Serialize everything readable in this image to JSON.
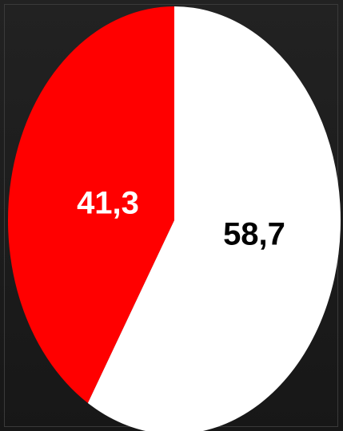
{
  "chart_data": {
    "type": "pie",
    "categories": [
      "",
      ""
    ],
    "values": [
      41.3,
      58.7
    ],
    "value_labels": [
      "41,3",
      "58,7"
    ],
    "colors": [
      "#ff0000",
      "#ffffff"
    ],
    "label_colors": [
      "#ffffff",
      "#000000"
    ],
    "start_angle_deg": 0,
    "direction": "counterclockwise",
    "legend": "none",
    "title": ""
  }
}
